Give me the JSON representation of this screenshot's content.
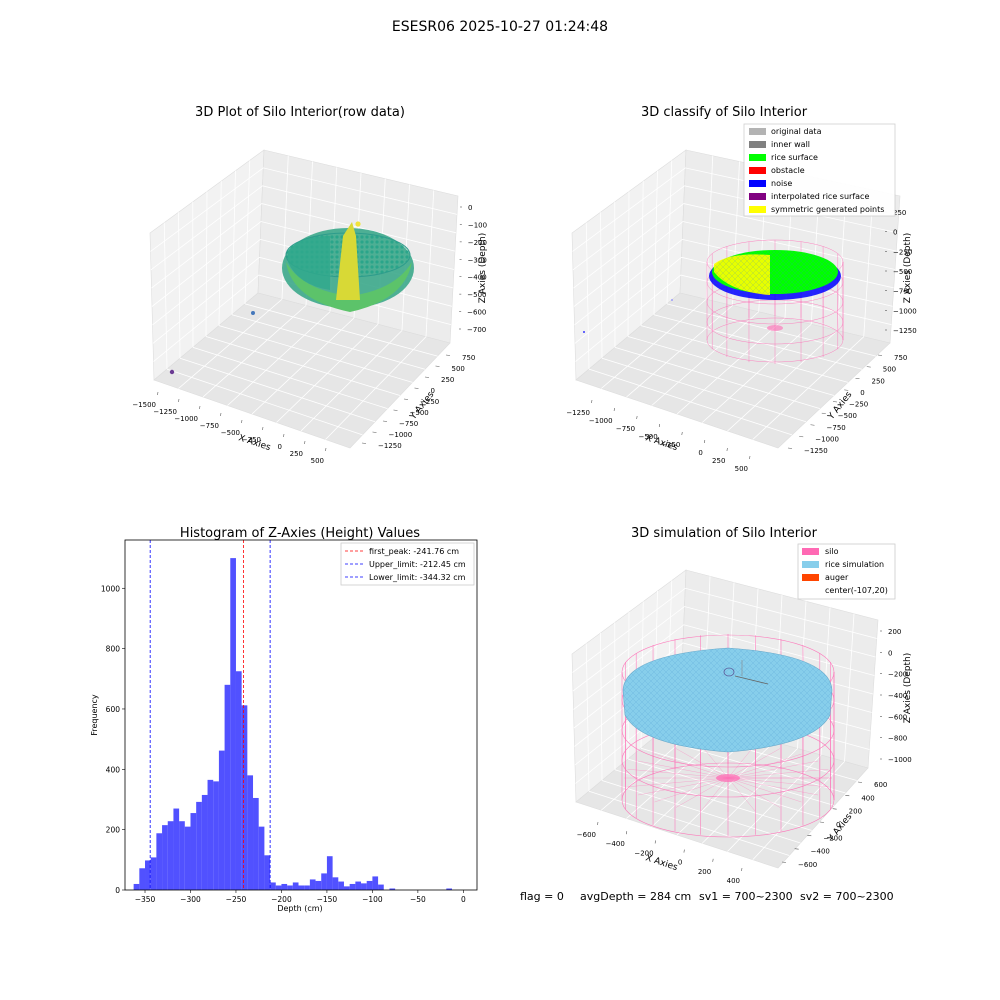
{
  "suptitle": "ESESR06 2025-10-27 01:24:48",
  "footer": {
    "flag": "flag = 0",
    "avg_depth": "avgDepth = 284 cm",
    "sv1": "sv1 = 700~2300",
    "sv2": "sv2 = 700~2300"
  },
  "colors": {
    "rice_surface": "#00ff00",
    "noise": "#0000ff",
    "symmetric": "#ffff00",
    "silo": "#ff69b4",
    "rice_sim": "#87ceeb",
    "auger": "#ff4500",
    "hist_bar": "#3333ff"
  },
  "chart_data": [
    {
      "type": "scatter3d",
      "title": "3D Plot of Silo Interior(row data)",
      "xlabel": "X Axies",
      "ylabel": "Y Axies",
      "zlabel": "Z Axies (Depth)",
      "xticks": [
        "−1500",
        "−1250",
        "−1000",
        "−750",
        "−500",
        "−250",
        "0",
        "250",
        "500"
      ],
      "yticks": [
        "−1250",
        "−1000",
        "−750",
        "−500",
        "−250",
        "0",
        "250",
        "500",
        "750"
      ],
      "zticks": [
        "0",
        "−100",
        "−200",
        "−300",
        "−400",
        "−500",
        "−600",
        "−700"
      ]
    },
    {
      "type": "scatter3d",
      "title": "3D classify of Silo Interior",
      "xlabel": "X Axies",
      "ylabel": "Y Axies",
      "zlabel": "Z Axies (Depth)",
      "xticks": [
        "−1250",
        "−1000",
        "−750",
        "−500",
        "−250",
        "0",
        "250",
        "500"
      ],
      "yticks": [
        "−1250",
        "−1000",
        "−750",
        "−500",
        "−250",
        "0",
        "250",
        "500",
        "750"
      ],
      "zticks": [
        "250",
        "0",
        "−250",
        "−500",
        "−750",
        "−1000",
        "−1250"
      ],
      "legend": [
        {
          "label": "original data",
          "color": "#b3b3b3"
        },
        {
          "label": "inner wall",
          "color": "#808080"
        },
        {
          "label": "rice surface",
          "color": "#00ff00"
        },
        {
          "label": "obstacle",
          "color": "#ff0000"
        },
        {
          "label": "noise",
          "color": "#0000ff"
        },
        {
          "label": "interpolated rice surface",
          "color": "#800080"
        },
        {
          "label": "symmetric generated points",
          "color": "#ffff00"
        }
      ],
      "legend_position": "top-right"
    },
    {
      "type": "bar",
      "title": "Histogram of Z-Axies (Height) Values",
      "xlabel": "Depth (cm)",
      "ylabel": "Frequency",
      "xlim": [
        -372,
        15
      ],
      "ylim": [
        0,
        1160
      ],
      "xticks": [
        -350,
        -300,
        -250,
        -200,
        -150,
        -100,
        -50,
        0
      ],
      "yticks": [
        0,
        200,
        400,
        600,
        800,
        1000
      ],
      "bin_width": 6.25,
      "bin_start": -362.5,
      "values": [
        20,
        72,
        98,
        108,
        188,
        215,
        228,
        270,
        228,
        210,
        255,
        292,
        315,
        365,
        360,
        462,
        680,
        1100,
        725,
        612,
        380,
        305,
        210,
        115,
        25,
        15,
        20,
        15,
        25,
        15,
        15,
        35,
        30,
        55,
        112,
        42,
        28,
        12,
        20,
        28,
        22,
        30,
        45,
        18,
        0,
        5,
        0,
        0,
        0,
        0,
        0,
        0,
        0,
        0,
        0,
        5
      ],
      "vlines": [
        {
          "label": "first_peak: -241.76 cm",
          "x": -241.76,
          "color": "#ff0000"
        },
        {
          "label": "Upper_limit: -212.45 cm",
          "x": -212.45,
          "color": "#0000ff"
        },
        {
          "label": "Lower_limit: -344.32 cm",
          "x": -344.32,
          "color": "#0000ff"
        }
      ],
      "legend_position": "top-right"
    },
    {
      "type": "surface3d",
      "title": "3D simulation of Silo Interior",
      "xlabel": "X Axies",
      "ylabel": "Y Axies",
      "zlabel": "Z Axies (Depth)",
      "xticks": [
        "−600",
        "−400",
        "−200",
        "0",
        "200",
        "400"
      ],
      "yticks": [
        "−600",
        "−400",
        "−200",
        "0",
        "200",
        "400",
        "600"
      ],
      "zticks": [
        "200",
        "0",
        "−200",
        "−400",
        "−600",
        "−800",
        "−1000"
      ],
      "legend": [
        {
          "label": "silo",
          "color": "#ff69b4"
        },
        {
          "label": "rice simulation",
          "color": "#87ceeb"
        },
        {
          "label": "auger",
          "color": "#ff4500"
        },
        {
          "label": "center(-107,20)",
          "color": ""
        }
      ],
      "legend_position": "top-right"
    }
  ]
}
